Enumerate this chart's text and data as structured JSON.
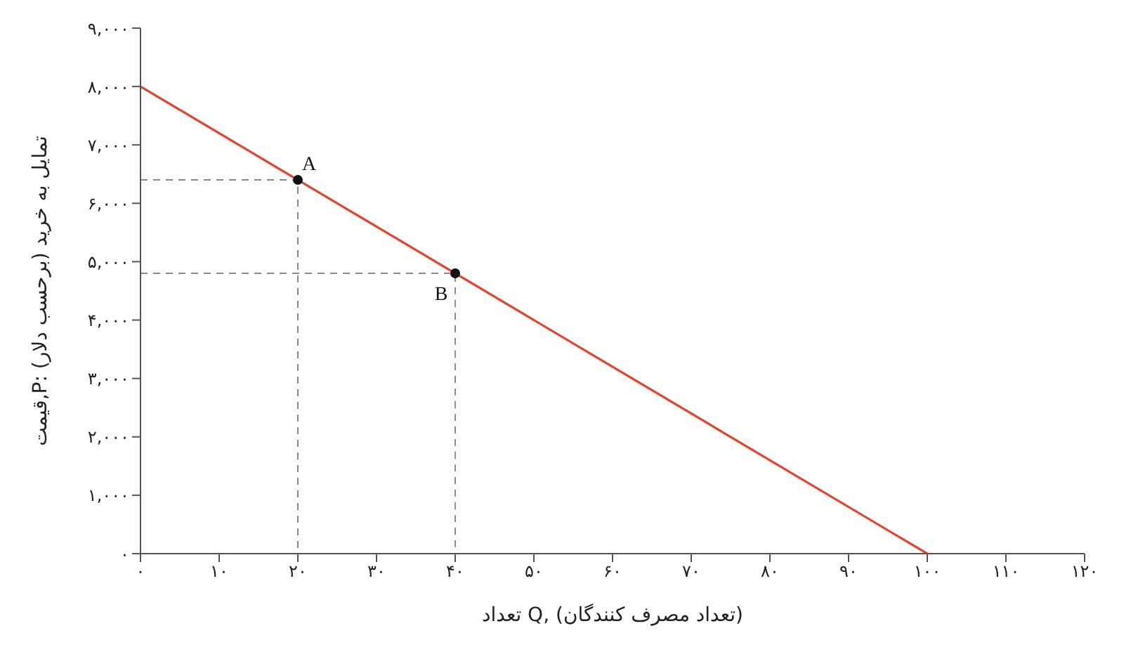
{
  "chart_data": {
    "type": "line",
    "xlabel": "تعداد Q, (تعداد مصرف کنندگان)",
    "ylabel": "قیمت,P: تمایل به خرید (برحسب دلار)",
    "xlim": [
      0,
      120
    ],
    "xticks": [
      {
        "value": 0,
        "label": "۰"
      },
      {
        "value": 10,
        "label": "۱۰"
      },
      {
        "value": 20,
        "label": "۲۰"
      },
      {
        "value": 30,
        "label": "۳۰"
      },
      {
        "value": 40,
        "label": "۴۰"
      },
      {
        "value": 50,
        "label": "۵۰"
      },
      {
        "value": 60,
        "label": "۶۰"
      },
      {
        "value": 70,
        "label": "۷۰"
      },
      {
        "value": 80,
        "label": "۸۰"
      },
      {
        "value": 90,
        "label": "۹۰"
      },
      {
        "value": 100,
        "label": "۱۰۰"
      },
      {
        "value": 110,
        "label": "۱۱۰"
      },
      {
        "value": 120,
        "label": "۱۲۰"
      }
    ],
    "ylim": [
      0,
      9000
    ],
    "yticks": [
      {
        "value": 0,
        "label": "۰"
      },
      {
        "value": 1000,
        "label": "۱,۰۰۰"
      },
      {
        "value": 2000,
        "label": "۲,۰۰۰"
      },
      {
        "value": 3000,
        "label": "۳,۰۰۰"
      },
      {
        "value": 4000,
        "label": "۴,۰۰۰"
      },
      {
        "value": 5000,
        "label": "۵,۰۰۰"
      },
      {
        "value": 6000,
        "label": "۶,۰۰۰"
      },
      {
        "value": 7000,
        "label": "۷,۰۰۰"
      },
      {
        "value": 8000,
        "label": "۸,۰۰۰"
      },
      {
        "value": 9000,
        "label": "۹,۰۰۰"
      }
    ],
    "grid": false,
    "series": [
      {
        "color": "#e8412c",
        "x": [
          0,
          100
        ],
        "values": [
          8000,
          0
        ],
        "line_style": "solid",
        "marker": "none"
      },
      {
        "type": "line",
        "color": "#8a8a8a",
        "x": [
          0,
          20,
          20
        ],
        "values": [
          6400,
          6400,
          0
        ],
        "line_style": "dashed",
        "marker": "none"
      },
      {
        "type": "line",
        "color": "#8a8a8a",
        "x": [
          0,
          40,
          40
        ],
        "values": [
          4800,
          4800,
          0
        ],
        "line_style": "dashed",
        "marker": "none"
      },
      {
        "type": "scatter",
        "color": "#111111",
        "x": [
          20,
          40
        ],
        "values": [
          6400,
          4800
        ],
        "marker": "circle"
      }
    ],
    "annotations": [
      {
        "text": "A",
        "x": 20,
        "y": 6400
      },
      {
        "text": "B",
        "x": 40,
        "y": 4800
      }
    ]
  }
}
